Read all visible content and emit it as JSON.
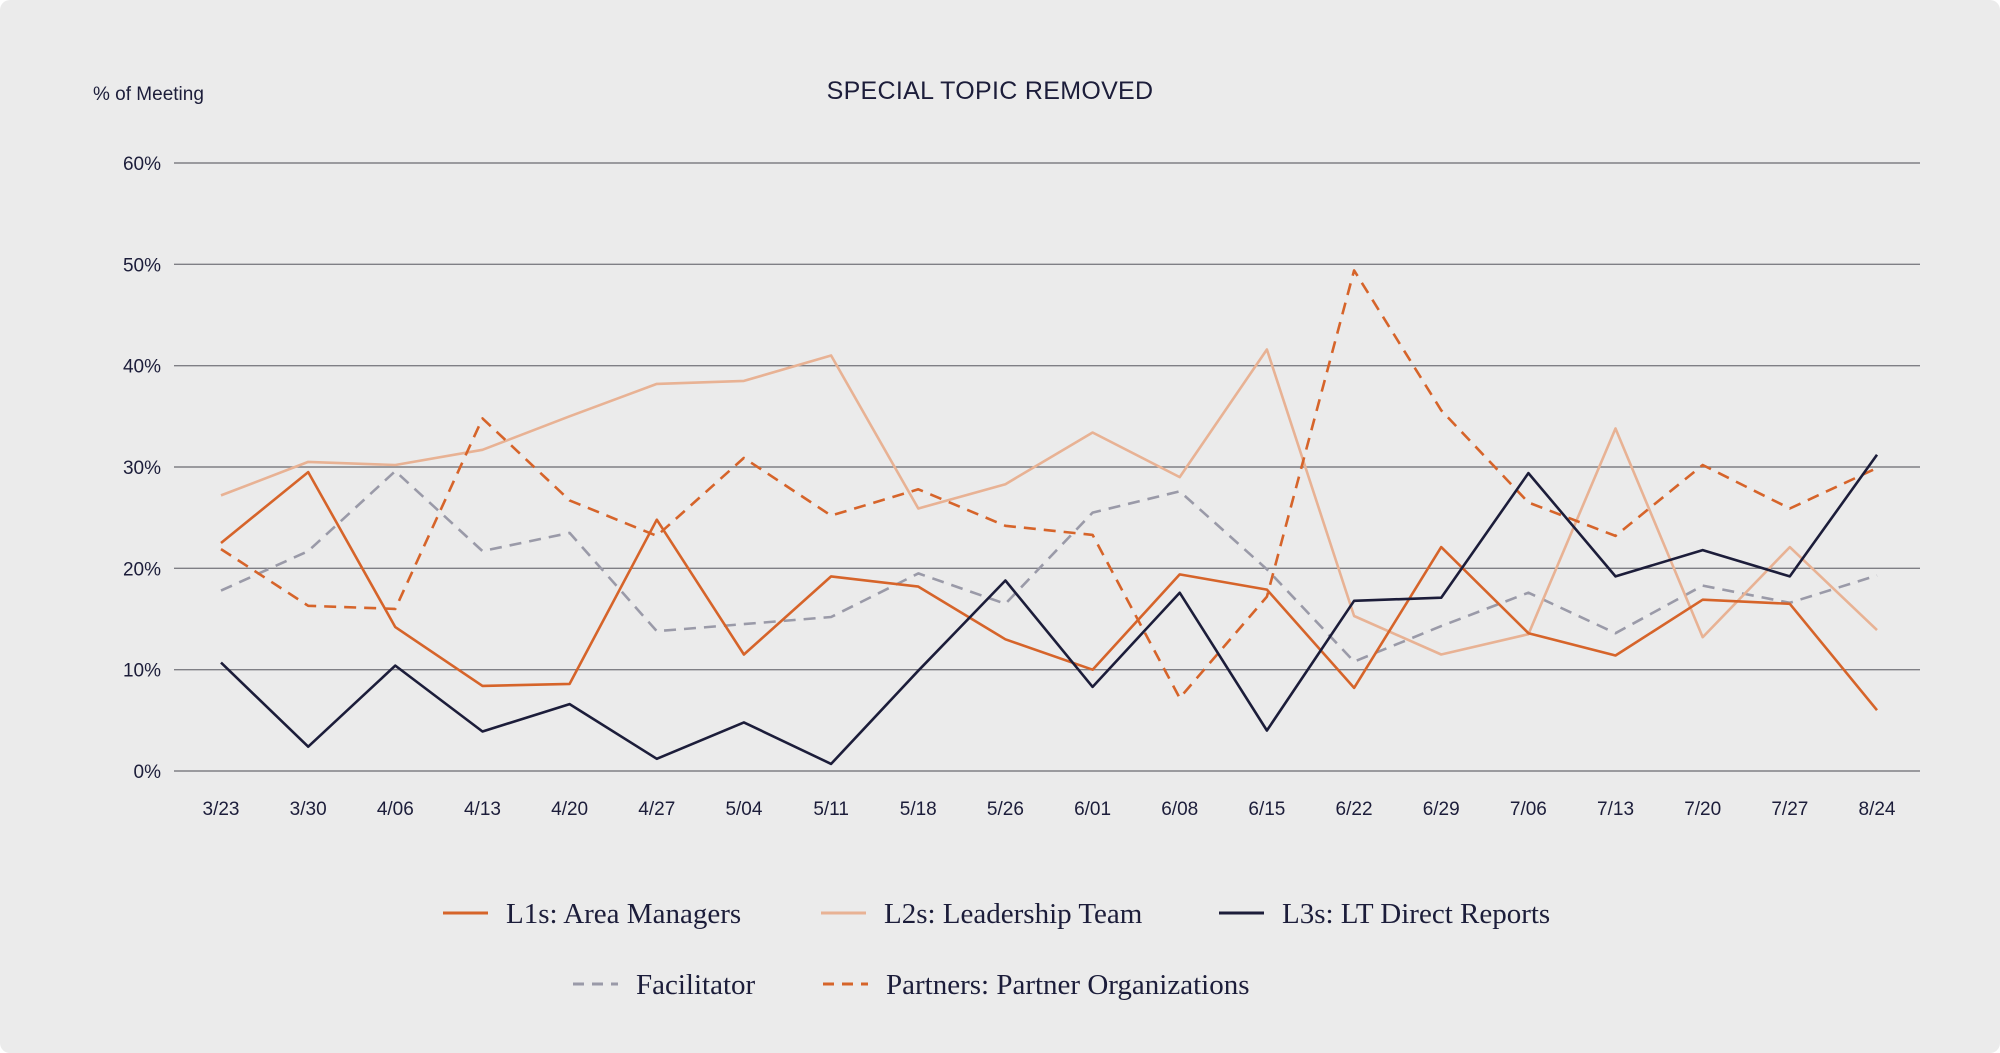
{
  "chart_data": {
    "type": "line",
    "title": "SPECIAL TOPIC REMOVED",
    "ylabel": "% of Meeting",
    "xlabel": "",
    "ylim": [
      0,
      60
    ],
    "yticks": [
      0,
      10,
      20,
      30,
      40,
      50,
      60
    ],
    "ytick_labels": [
      "0%",
      "10%",
      "20%",
      "30%",
      "40%",
      "50%",
      "60%"
    ],
    "grid": true,
    "legend_position": "bottom",
    "categories": [
      "3/23",
      "3/30",
      "4/06",
      "4/13",
      "4/20",
      "4/27",
      "5/04",
      "5/11",
      "5/18",
      "5/26",
      "6/01",
      "6/08",
      "6/15",
      "6/22",
      "6/29",
      "7/06",
      "7/13",
      "7/20",
      "7/27",
      "8/24"
    ],
    "series": [
      {
        "name": "L1s: Area Managers",
        "color": "#d6642a",
        "dash": "solid",
        "values": [
          22.5,
          29.5,
          14.2,
          8.4,
          8.6,
          24.8,
          11.5,
          19.2,
          18.2,
          13.0,
          10.0,
          19.4,
          17.9,
          8.2,
          22.1,
          13.6,
          11.4,
          16.9,
          16.5,
          6.0
        ]
      },
      {
        "name": "L2s: Leadership Team",
        "color": "#e8b294",
        "dash": "solid",
        "values": [
          27.2,
          30.5,
          30.2,
          31.7,
          35.0,
          38.2,
          38.5,
          41.0,
          25.9,
          28.3,
          33.4,
          29.0,
          41.6,
          15.3,
          11.5,
          13.5,
          33.8,
          13.2,
          22.1,
          13.9
        ]
      },
      {
        "name": "L3s: LT Direct Reports",
        "color": "#1c1d3a",
        "dash": "solid",
        "values": [
          10.7,
          2.4,
          10.4,
          3.9,
          6.6,
          1.2,
          4.8,
          0.7,
          9.9,
          18.8,
          8.3,
          17.6,
          4.0,
          16.8,
          17.1,
          29.4,
          19.2,
          21.8,
          19.2,
          31.2
        ]
      },
      {
        "name": "Facilitator",
        "color": "#9a9aa8",
        "dash": "dashed",
        "values": [
          17.8,
          21.7,
          29.6,
          21.7,
          23.5,
          13.8,
          14.5,
          15.2,
          19.5,
          16.5,
          25.5,
          27.6,
          19.9,
          10.8,
          14.3,
          17.6,
          13.6,
          18.3,
          16.6,
          19.3
        ]
      },
      {
        "name": "Partners: Partner Organizations",
        "color": "#d6642a",
        "dash": "dashed",
        "values": [
          21.9,
          16.3,
          16.0,
          34.8,
          26.7,
          23.2,
          30.9,
          25.2,
          27.8,
          24.2,
          23.3,
          7.2,
          17.2,
          49.4,
          35.6,
          26.5,
          23.2,
          30.2,
          25.9,
          29.9
        ]
      }
    ]
  }
}
